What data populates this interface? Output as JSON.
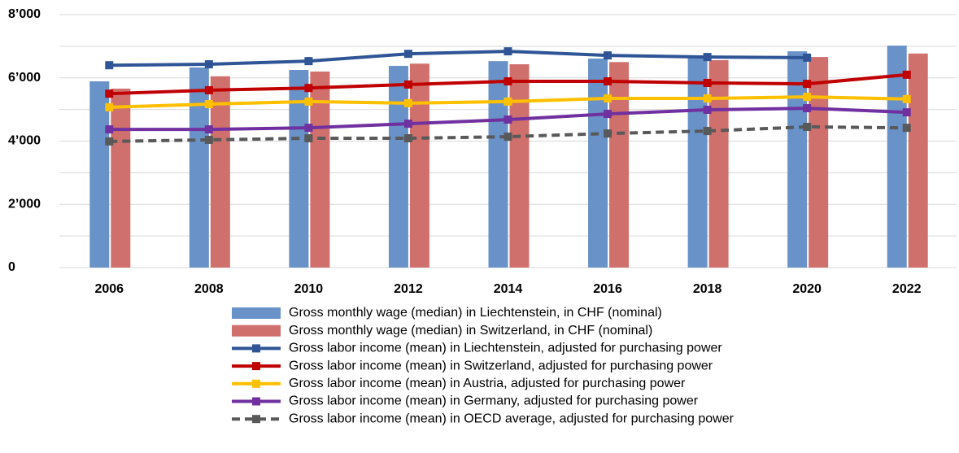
{
  "chart_data": {
    "type": "bar_line",
    "categories": [
      "2006",
      "2008",
      "2010",
      "2012",
      "2014",
      "2016",
      "2018",
      "2020",
      "2022"
    ],
    "ylim": [
      0,
      8000
    ],
    "yticks": [
      {
        "value": 0,
        "label": "0"
      },
      {
        "value": 2000,
        "label": "2’000"
      },
      {
        "value": 4000,
        "label": "4’000"
      },
      {
        "value": 6000,
        "label": "6’000"
      },
      {
        "value": 8000,
        "label": "8’000"
      }
    ],
    "minor_grid": [
      1000,
      3000,
      5000,
      7000
    ],
    "grid": true,
    "legend": "bottom",
    "series": [
      {
        "name": "Gross monthly wage (median) in Liechtenstein, in CHF (nominal)",
        "mark": "bar",
        "color": "#6892c8",
        "values": [
          5890,
          6330,
          6250,
          6380,
          6530,
          6610,
          6700,
          6840,
          7020
        ]
      },
      {
        "name": "Gross monthly wage (median) in Switzerland, in CHF (nominal)",
        "mark": "bar",
        "color": "#d0706c",
        "values": [
          5660,
          6050,
          6200,
          6450,
          6430,
          6500,
          6560,
          6660,
          6770
        ]
      },
      {
        "name": "Gross labor income (mean) in Liechtenstein, adjusted for purchasing power",
        "mark": "line",
        "color": "#2f5597",
        "values": [
          6400,
          6430,
          6530,
          6760,
          6840,
          6710,
          6660,
          6640,
          null
        ]
      },
      {
        "name": "Gross labor income (mean) in Switzerland, adjusted for purchasing power",
        "mark": "line",
        "color": "#c00000",
        "values": [
          5500,
          5610,
          5680,
          5790,
          5890,
          5890,
          5840,
          5810,
          6100
        ]
      },
      {
        "name": "Gross labor income (mean) in Austria, adjusted for purchasing power",
        "mark": "line",
        "color": "#ffc000",
        "values": [
          5070,
          5170,
          5250,
          5200,
          5250,
          5350,
          5350,
          5400,
          5330
        ]
      },
      {
        "name": "Gross labor income (mean) in Germany, adjusted for purchasing power",
        "mark": "line",
        "color": "#7030a0",
        "values": [
          4370,
          4370,
          4420,
          4550,
          4680,
          4860,
          4990,
          5040,
          4910
        ]
      },
      {
        "name": "Gross labor income (mean) in OECD average, adjusted for purchasing power",
        "mark": "line",
        "dash": true,
        "color": "#595959",
        "values": [
          3990,
          4040,
          4090,
          4090,
          4140,
          4240,
          4320,
          4450,
          4420
        ]
      }
    ]
  }
}
